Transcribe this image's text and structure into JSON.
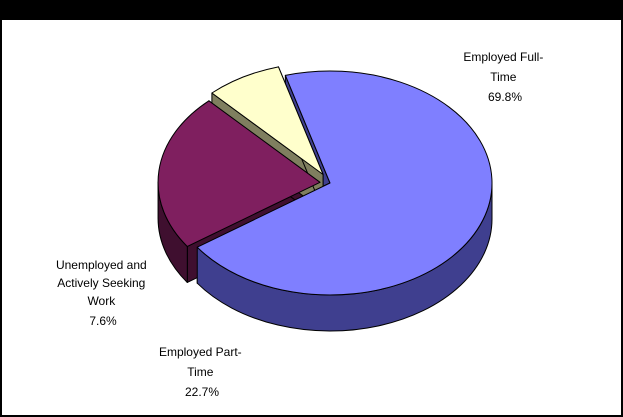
{
  "chart_data": {
    "type": "pie",
    "three_d": true,
    "title": "",
    "slices": [
      {
        "name": "Employed Full-Time",
        "value": 69.8,
        "label_lines": [
          "Employed Full-",
          "Time",
          "69.8%"
        ],
        "color": "#7F7FFF",
        "side_color": "#3F3F8F"
      },
      {
        "name": "Employed Part-Time",
        "value": 22.7,
        "label_lines": [
          "Employed Part-",
          "Time",
          "22.7%"
        ],
        "color": "#7F1F5F",
        "side_color": "#3F0F2F"
      },
      {
        "name": "Unemployed and Actively Seeking Work",
        "value": 7.6,
        "label_lines": [
          "Unemployed and",
          "Actively Seeking",
          "Work",
          "7.6%"
        ],
        "color": "#FFFFCC",
        "side_color": "#7F7F5F"
      }
    ],
    "legend": "none"
  }
}
